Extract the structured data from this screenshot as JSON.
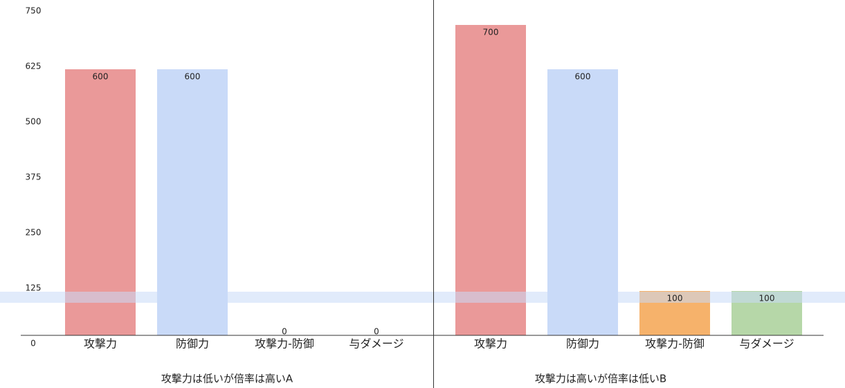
{
  "chart_data": [
    {
      "type": "bar",
      "title": "攻撃力は低いが倍率は高いA",
      "categories": [
        "攻撃力",
        "防御力",
        "攻撃力-防御",
        "与ダメージ"
      ],
      "values": [
        600,
        600,
        0,
        0
      ],
      "colors": [
        "#ea9999",
        "#c9daf8",
        "#f6b26b",
        "#b6d7a8"
      ],
      "ylim": [
        0,
        750
      ],
      "yticks": [
        0,
        125,
        250,
        375,
        500,
        625,
        750
      ]
    },
    {
      "type": "bar",
      "title": "攻撃力は高いが倍率は低いB",
      "categories": [
        "攻撃力",
        "防御力",
        "攻撃力-防御",
        "与ダメージ"
      ],
      "values": [
        700,
        600,
        100,
        100
      ],
      "colors": [
        "#ea9999",
        "#c9daf8",
        "#f6b26b",
        "#b6d7a8"
      ],
      "ylim": [
        0,
        750
      ]
    }
  ]
}
